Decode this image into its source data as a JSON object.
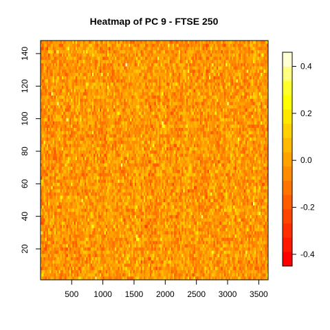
{
  "chart_data": {
    "type": "heatmap",
    "title": "Heatmap of PC 9  - FTSE 250",
    "xlabel": "",
    "ylabel": "",
    "xlim": [
      1,
      3650
    ],
    "ylim": [
      1,
      148
    ],
    "x_ticks": [
      500,
      1000,
      1500,
      2000,
      2500,
      3000,
      3500
    ],
    "y_ticks": [
      20,
      40,
      60,
      80,
      100,
      120,
      140
    ],
    "colorbar": {
      "range": [
        -0.45,
        0.46
      ],
      "ticks": [
        -0.4,
        -0.2,
        0.0,
        0.2,
        0.4
      ],
      "tick_labels": [
        "-0.4",
        "-0.2",
        "0.0",
        "0.2",
        "0.4"
      ],
      "colors": [
        "#FF0000",
        "#FF1700",
        "#FF2E00",
        "#FF4500",
        "#FF5D00",
        "#FF7400",
        "#FF8B00",
        "#FFA200",
        "#FFB900",
        "#FFD100",
        "#FFE800",
        "#FFFF00",
        "#FFFF2B",
        "#FFFF80",
        "#FFFFD5"
      ],
      "grid": false,
      "placement": "right"
    },
    "grid": false,
    "value_distribution": {
      "typical_min": -0.25,
      "typical_max": 0.2,
      "dominant_value": -0.02,
      "note_visible": false
    }
  }
}
